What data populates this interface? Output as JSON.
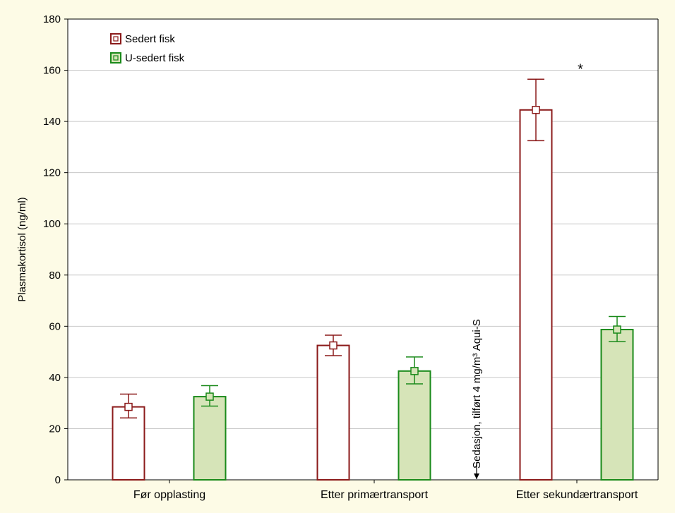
{
  "chart_data": {
    "type": "bar",
    "categories": [
      "Før opplasting",
      "Etter primærtransport",
      "Etter sekundærtransport"
    ],
    "series": [
      {
        "name": "Sedert fisk",
        "values": [
          28.5,
          52.5,
          144.5
        ],
        "error_low": [
          24.2,
          48.5,
          132.5
        ],
        "error_high": [
          33.5,
          56.5,
          156.5
        ],
        "color": "#8b1a1a",
        "fill": "#ffffff"
      },
      {
        "name": "U-sedert fisk",
        "values": [
          32.5,
          42.5,
          58.7
        ],
        "error_low": [
          28.8,
          37.5,
          54.0
        ],
        "error_high": [
          36.8,
          48.0,
          63.8
        ],
        "color": "#1a8a1a",
        "fill": "#d6e4b8"
      }
    ],
    "title": "",
    "xlabel": "",
    "ylabel": "Plasmakortisol (ng/ml)",
    "ylim": [
      0,
      180
    ],
    "yticks": [
      0,
      20,
      40,
      60,
      80,
      100,
      120,
      140,
      160,
      180
    ],
    "grid": true,
    "legend": "top-left",
    "annotations": [
      {
        "text": "*",
        "category": "Etter sekundærtransport",
        "value": 162
      }
    ],
    "sedation_marker": {
      "text": "Sedasjon, tilført 4 mg/m³ Aqui-S",
      "between": [
        "Etter primærtransport",
        "Etter sekundærtransport"
      ]
    }
  }
}
